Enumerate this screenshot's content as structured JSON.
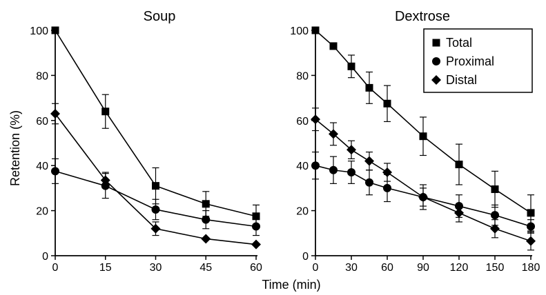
{
  "chart_data": {
    "type": "line",
    "ylabel": "Retention (%)",
    "xlabel": "Time (min)",
    "ylim": [
      0,
      100
    ],
    "yticks": [
      0,
      20,
      40,
      60,
      80,
      100
    ],
    "legend": {
      "placement": "top-right",
      "entries": [
        {
          "name": "Total",
          "marker": "square"
        },
        {
          "name": "Proximal",
          "marker": "circle"
        },
        {
          "name": "Distal",
          "marker": "diamond"
        }
      ]
    },
    "panels": [
      {
        "title": "Soup",
        "x": [
          0,
          15,
          30,
          45,
          60
        ],
        "xticks": [
          0,
          15,
          30,
          45,
          60
        ],
        "xlim": [
          0,
          60
        ],
        "series": [
          {
            "name": "Total",
            "marker": "square",
            "values": [
              100,
              64,
              31,
              23,
              17.5
            ],
            "errors": [
              0,
              7.5,
              8,
              5.5,
              5
            ]
          },
          {
            "name": "Proximal",
            "marker": "circle",
            "values": [
              37.5,
              31,
              20.5,
              16,
              13
            ],
            "errors": [
              5.5,
              5.5,
              4.5,
              4,
              4
            ]
          },
          {
            "name": "Distal",
            "marker": "diamond",
            "values": [
              63,
              33.5,
              12,
              7.5,
              5
            ],
            "errors": [
              4.5,
              3.5,
              3,
              0,
              0
            ]
          }
        ]
      },
      {
        "title": "Dextrose",
        "x": [
          0,
          15,
          30,
          45,
          60,
          90,
          120,
          150,
          180
        ],
        "xticks": [
          0,
          30,
          60,
          90,
          120,
          150,
          180
        ],
        "xlim": [
          0,
          180
        ],
        "series": [
          {
            "name": "Total",
            "marker": "square",
            "values": [
              100,
              93,
              84,
              74.5,
              67.5,
              53,
              40.5,
              29.5,
              19
            ],
            "errors": [
              0,
              0,
              5,
              7,
              8,
              8.5,
              9,
              8,
              8
            ]
          },
          {
            "name": "Proximal",
            "marker": "circle",
            "values": [
              40,
              38,
              37,
              32.5,
              30,
              26,
              22,
              18,
              13
            ],
            "errors": [
              6,
              6,
              5,
              5.5,
              6,
              5.5,
              5,
              4.5,
              3
            ]
          },
          {
            "name": "Distal",
            "marker": "diamond",
            "values": [
              60.5,
              54,
              47,
              42,
              37,
              26,
              19,
              12,
              6.5
            ],
            "errors": [
              5,
              5,
              4,
              4,
              4,
              4,
              4,
              4,
              4
            ]
          }
        ]
      }
    ]
  }
}
